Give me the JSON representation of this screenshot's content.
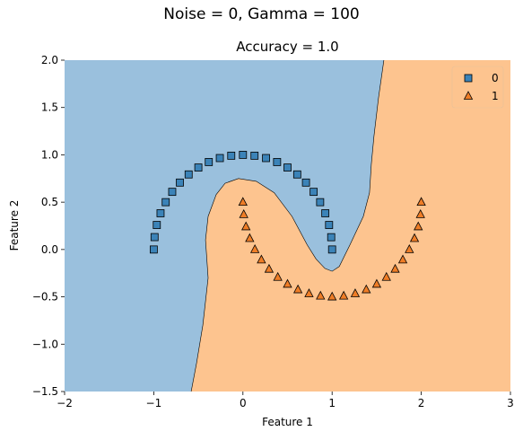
{
  "figure": {
    "suptitle": "Noise = 0, Gamma = 100",
    "title": "Accuracy = 1.0",
    "xlabel": "Feature 1",
    "ylabel": "Feature 2"
  },
  "chart_data": {
    "type": "scatter",
    "title": "Accuracy = 1.0",
    "suptitle": "Noise = 0, Gamma = 100",
    "xlabel": "Feature 1",
    "ylabel": "Feature 2",
    "xlim": [
      -2,
      3
    ],
    "ylim": [
      -1.5,
      2.0
    ],
    "xticks": [
      -2,
      -1,
      0,
      1,
      2,
      3
    ],
    "xtick_labels": [
      "−2",
      "−1",
      "0",
      "1",
      "2",
      "3"
    ],
    "yticks": [
      -1.5,
      -1.0,
      -0.5,
      0.0,
      0.5,
      1.0,
      1.5,
      2.0
    ],
    "ytick_labels": [
      "−1.5",
      "−1.0",
      "−0.5",
      "0.0",
      "0.5",
      "1.0",
      "1.5",
      "2.0"
    ],
    "legend_position": "top-right",
    "grid": false,
    "region_colors": {
      "class0": "#9ac0dd",
      "class1": "#fdc48f"
    },
    "decision_boundary": [
      [
        -0.58,
        -1.5
      ],
      [
        -0.52,
        -1.2
      ],
      [
        -0.45,
        -0.8
      ],
      [
        -0.39,
        -0.3
      ],
      [
        -0.42,
        0.1
      ],
      [
        -0.39,
        0.35
      ],
      [
        -0.3,
        0.58
      ],
      [
        -0.2,
        0.7
      ],
      [
        -0.05,
        0.75
      ],
      [
        0.15,
        0.72
      ],
      [
        0.35,
        0.6
      ],
      [
        0.55,
        0.35
      ],
      [
        0.72,
        0.05
      ],
      [
        0.82,
        -0.1
      ],
      [
        0.92,
        -0.2
      ],
      [
        1.0,
        -0.23
      ],
      [
        1.08,
        -0.18
      ],
      [
        1.2,
        0.05
      ],
      [
        1.35,
        0.35
      ],
      [
        1.42,
        0.6
      ],
      [
        1.44,
        0.9
      ],
      [
        1.47,
        1.2
      ],
      [
        1.52,
        1.6
      ],
      [
        1.58,
        2.0
      ]
    ],
    "series": [
      {
        "name": "0",
        "marker": "square",
        "color": "#3b83b8",
        "points": [
          [
            1.0,
            0.0
          ],
          [
            0.99,
            0.13
          ],
          [
            0.966,
            0.259
          ],
          [
            0.924,
            0.383
          ],
          [
            0.866,
            0.5
          ],
          [
            0.793,
            0.609
          ],
          [
            0.707,
            0.707
          ],
          [
            0.609,
            0.793
          ],
          [
            0.5,
            0.866
          ],
          [
            0.383,
            0.924
          ],
          [
            0.259,
            0.966
          ],
          [
            0.13,
            0.991
          ],
          [
            0.0,
            1.0
          ],
          [
            -0.131,
            0.991
          ],
          [
            -0.259,
            0.966
          ],
          [
            -0.383,
            0.924
          ],
          [
            -0.5,
            0.866
          ],
          [
            -0.609,
            0.793
          ],
          [
            -0.707,
            0.707
          ],
          [
            -0.793,
            0.609
          ],
          [
            -0.866,
            0.5
          ],
          [
            -0.924,
            0.383
          ],
          [
            -0.966,
            0.259
          ],
          [
            -0.991,
            0.131
          ],
          [
            -1.0,
            0.0
          ]
        ]
      },
      {
        "name": "1",
        "marker": "triangle",
        "color": "#ef7d26",
        "points": [
          [
            0.0,
            0.5
          ],
          [
            0.009,
            0.37
          ],
          [
            0.034,
            0.241
          ],
          [
            0.076,
            0.117
          ],
          [
            0.134,
            0.0
          ],
          [
            0.207,
            -0.109
          ],
          [
            0.293,
            -0.207
          ],
          [
            0.391,
            -0.293
          ],
          [
            0.5,
            -0.366
          ],
          [
            0.617,
            -0.424
          ],
          [
            0.741,
            -0.466
          ],
          [
            0.87,
            -0.491
          ],
          [
            1.0,
            -0.5
          ],
          [
            1.13,
            -0.491
          ],
          [
            1.259,
            -0.466
          ],
          [
            1.383,
            -0.424
          ],
          [
            1.5,
            -0.366
          ],
          [
            1.609,
            -0.293
          ],
          [
            1.707,
            -0.207
          ],
          [
            1.793,
            -0.109
          ],
          [
            1.866,
            0.0
          ],
          [
            1.924,
            0.117
          ],
          [
            1.966,
            0.241
          ],
          [
            1.991,
            0.37
          ],
          [
            2.0,
            0.5
          ]
        ]
      }
    ]
  }
}
